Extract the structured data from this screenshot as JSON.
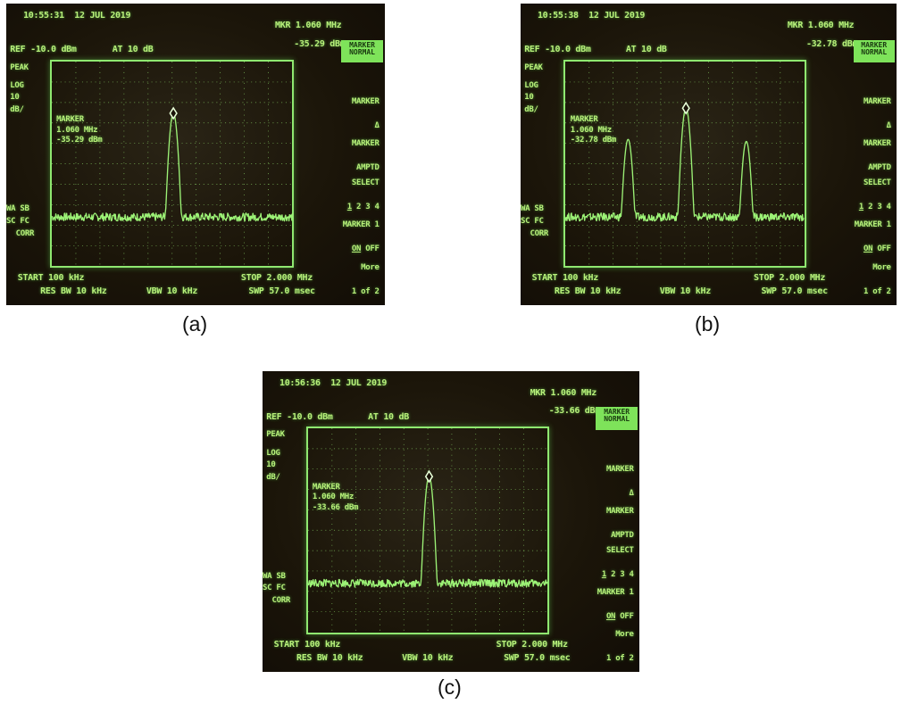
{
  "colors": {
    "trace": "#9cf276",
    "text": "#b8f07a",
    "background": "#1a1209"
  },
  "panels": [
    {
      "caption": "(a)",
      "timestamp": "10:55:31  12 JUL 2019",
      "ref": "REF -10.0 dBm",
      "atten": "AT 10 dB",
      "mkr_header": "MKR 1.060 MHz",
      "mkr_value": "-35.29 dBm",
      "marker_label": "MARKER",
      "marker_freq": "1.060 MHz",
      "marker_ampl": "-35.29 dBm",
      "peak": "PEAK",
      "log": "LOG",
      "div": "10",
      "unit": "dB/",
      "wa_sb": "WA SB",
      "sc_fc": "SC FC",
      "corr": "CORR",
      "start": "START 100 kHz",
      "stop": "STOP 2.000 MHz",
      "res_bw": "RES BW 10 kHz",
      "vbw": "VBW 10 kHz",
      "swp": "SWP 57.0 msec",
      "softkeys": {
        "marker_normal_1": "MARKER",
        "marker_normal_2": "NORMAL",
        "marker_delta_1": "MARKER",
        "marker_delta_2": "Δ",
        "marker_amptd_1": "MARKER",
        "marker_amptd_2": "AMPTD",
        "select_1": "SELECT",
        "select_2a": "1",
        "select_2b": " 2 3 4",
        "marker1_1": "MARKER 1",
        "marker1_on": "ON",
        "marker1_off": " OFF",
        "more_1": "More",
        "more_2": "1 of 2"
      },
      "peaks": [
        {
          "frequency_mhz": 1.06,
          "level_dbm": -35.29
        }
      ]
    },
    {
      "caption": "(b)",
      "timestamp": "10:55:38  12 JUL 2019",
      "ref": "REF -10.0 dBm",
      "atten": "AT 10 dB",
      "mkr_header": "MKR 1.060 MHz",
      "mkr_value": "-32.78 dBm",
      "marker_label": "MARKER",
      "marker_freq": "1.060 MHz",
      "marker_ampl": "-32.78 dBm",
      "peak": "PEAK",
      "log": "LOG",
      "div": "10",
      "unit": "dB/",
      "wa_sb": "WA SB",
      "sc_fc": "SC FC",
      "corr": "CORR",
      "start": "START 100 kHz",
      "stop": "STOP 2.000 MHz",
      "res_bw": "RES BW 10 kHz",
      "vbw": "VBW 10 kHz",
      "swp": "SWP 57.0 msec",
      "softkeys": {
        "marker_normal_1": "MARKER",
        "marker_normal_2": "NORMAL",
        "marker_delta_1": "MARKER",
        "marker_delta_2": "Δ",
        "marker_amptd_1": "MARKER",
        "marker_amptd_2": "AMPTD",
        "select_1": "SELECT",
        "select_2a": "1",
        "select_2b": " 2 3 4",
        "marker1_1": "MARKER 1",
        "marker1_on": "ON",
        "marker1_off": " OFF",
        "more_1": "More",
        "more_2": "1 of 2"
      },
      "peaks": [
        {
          "frequency_mhz": 0.6,
          "level_dbm": -48
        },
        {
          "frequency_mhz": 1.06,
          "level_dbm": -32.78
        },
        {
          "frequency_mhz": 1.54,
          "level_dbm": -49
        }
      ]
    },
    {
      "caption": "(c)",
      "timestamp": "10:56:36  12 JUL 2019",
      "ref": "REF -10.0 dBm",
      "atten": "AT 10 dB",
      "mkr_header": "MKR 1.060 MHz",
      "mkr_value": "-33.66 dBm",
      "marker_label": "MARKER",
      "marker_freq": "1.060 MHz",
      "marker_ampl": "-33.66 dBm",
      "peak": "PEAK",
      "log": "LOG",
      "div": "10",
      "unit": "dB/",
      "wa_sb": "WA SB",
      "sc_fc": "SC FC",
      "corr": "CORR",
      "start": "START 100 kHz",
      "stop": "STOP 2.000 MHz",
      "res_bw": "RES BW 10 kHz",
      "vbw": "VBW 10 kHz",
      "swp": "SWP 57.0 msec",
      "softkeys": {
        "marker_normal_1": "MARKER",
        "marker_normal_2": "NORMAL",
        "marker_delta_1": "MARKER",
        "marker_delta_2": "Δ",
        "marker_amptd_1": "MARKER",
        "marker_amptd_2": "AMPTD",
        "select_1": "SELECT",
        "select_2a": "1",
        "select_2b": " 2 3 4",
        "marker1_1": "MARKER 1",
        "marker1_on": "ON",
        "marker1_off": " OFF",
        "more_1": "More",
        "more_2": "1 of 2"
      },
      "peaks": [
        {
          "frequency_mhz": 1.06,
          "level_dbm": -33.66
        }
      ]
    }
  ]
}
